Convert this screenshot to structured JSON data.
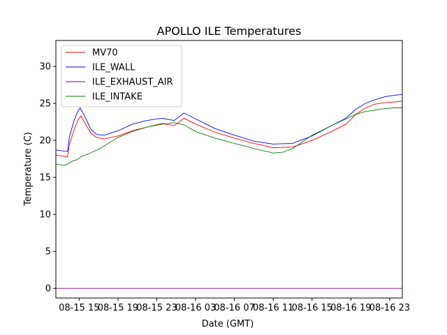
{
  "chart_data": {
    "type": "line",
    "title": "APOLLO ILE Temperatures",
    "xlabel": "Date (GMT)",
    "ylabel": "Temperature (C)",
    "x_unit": "hours since 08-15 11:00 GMT",
    "xlim": [
      1.6,
      37.3
    ],
    "ylim": [
      -1.3,
      33.5
    ],
    "yticks": [
      0,
      5,
      10,
      15,
      20,
      25,
      30
    ],
    "xticks": [
      {
        "value": 4,
        "label": "08-15 15"
      },
      {
        "value": 8,
        "label": "08-15 19"
      },
      {
        "value": 12,
        "label": "08-15 23"
      },
      {
        "value": 16,
        "label": "08-16 03"
      },
      {
        "value": 20,
        "label": "08-16 07"
      },
      {
        "value": 24,
        "label": "08-16 11"
      },
      {
        "value": 28,
        "label": "08-16 15"
      },
      {
        "value": 32,
        "label": "08-16 19"
      },
      {
        "value": 36,
        "label": "08-16 23"
      }
    ],
    "legend_position": "top-left",
    "series": [
      {
        "name": "MV70",
        "color": "#ff0000",
        "points": [
          [
            1.6,
            18.0
          ],
          [
            2.8,
            17.8
          ],
          [
            3.0,
            19.5
          ],
          [
            3.5,
            21.5
          ],
          [
            3.9,
            22.8
          ],
          [
            4.2,
            23.3
          ],
          [
            4.6,
            22.3
          ],
          [
            5.2,
            21.0
          ],
          [
            5.8,
            20.4
          ],
          [
            6.6,
            20.2
          ],
          [
            8.0,
            20.6
          ],
          [
            9.5,
            21.3
          ],
          [
            11.0,
            21.8
          ],
          [
            12.6,
            22.3
          ],
          [
            12.8,
            22.2
          ],
          [
            13.8,
            22.0
          ],
          [
            14.8,
            23.0
          ],
          [
            16.0,
            22.2
          ],
          [
            18.0,
            21.1
          ],
          [
            20.0,
            20.3
          ],
          [
            22.0,
            19.6
          ],
          [
            24.0,
            19.0
          ],
          [
            26.0,
            19.1
          ],
          [
            28.0,
            20.0
          ],
          [
            30.0,
            21.2
          ],
          [
            31.5,
            22.2
          ],
          [
            32.5,
            23.5
          ],
          [
            33.5,
            24.4
          ],
          [
            34.5,
            24.9
          ],
          [
            35.5,
            25.1
          ],
          [
            36.5,
            25.2
          ],
          [
            37.3,
            25.3
          ]
        ]
      },
      {
        "name": "ILE_WALL",
        "color": "#0000ff",
        "points": [
          [
            1.6,
            18.7
          ],
          [
            2.8,
            18.5
          ],
          [
            3.0,
            20.5
          ],
          [
            3.5,
            22.8
          ],
          [
            3.9,
            24.0
          ],
          [
            4.1,
            24.4
          ],
          [
            4.6,
            23.2
          ],
          [
            5.2,
            21.5
          ],
          [
            5.8,
            20.8
          ],
          [
            6.6,
            20.7
          ],
          [
            8.0,
            21.3
          ],
          [
            9.5,
            22.2
          ],
          [
            11.0,
            22.7
          ],
          [
            12.6,
            23.0
          ],
          [
            12.8,
            22.9
          ],
          [
            13.8,
            22.7
          ],
          [
            14.8,
            23.7
          ],
          [
            16.0,
            22.9
          ],
          [
            18.0,
            21.6
          ],
          [
            20.0,
            20.7
          ],
          [
            22.0,
            19.9
          ],
          [
            24.0,
            19.5
          ],
          [
            26.0,
            19.6
          ],
          [
            28.0,
            20.6
          ],
          [
            30.0,
            22.0
          ],
          [
            31.5,
            23.0
          ],
          [
            32.5,
            24.2
          ],
          [
            33.5,
            25.0
          ],
          [
            34.5,
            25.5
          ],
          [
            35.5,
            25.9
          ],
          [
            36.5,
            26.1
          ],
          [
            37.3,
            26.2
          ]
        ]
      },
      {
        "name": "ILE_EXHAUST_AIR",
        "color": "#800080",
        "points": [
          [
            1.6,
            0.0
          ],
          [
            37.3,
            0.0
          ]
        ]
      },
      {
        "name": "ILE_INTAKE",
        "color": "#008000",
        "points": [
          [
            1.6,
            16.8
          ],
          [
            2.5,
            16.6
          ],
          [
            2.8,
            16.8
          ],
          [
            3.3,
            17.2
          ],
          [
            3.8,
            17.4
          ],
          [
            4.2,
            17.8
          ],
          [
            5.0,
            18.2
          ],
          [
            6.0,
            18.8
          ],
          [
            7.0,
            19.6
          ],
          [
            8.0,
            20.4
          ],
          [
            9.5,
            21.2
          ],
          [
            11.0,
            21.8
          ],
          [
            12.6,
            22.2
          ],
          [
            13.8,
            22.4
          ],
          [
            14.8,
            22.1
          ],
          [
            16.0,
            21.2
          ],
          [
            18.0,
            20.3
          ],
          [
            20.0,
            19.6
          ],
          [
            22.0,
            18.9
          ],
          [
            24.0,
            18.3
          ],
          [
            25.0,
            18.4
          ],
          [
            26.0,
            18.9
          ],
          [
            27.0,
            19.8
          ],
          [
            28.0,
            20.7
          ],
          [
            30.0,
            22.0
          ],
          [
            31.5,
            22.9
          ],
          [
            32.5,
            23.5
          ],
          [
            33.5,
            23.9
          ],
          [
            34.5,
            24.1
          ],
          [
            35.5,
            24.3
          ],
          [
            36.5,
            24.4
          ],
          [
            37.3,
            24.4
          ]
        ]
      }
    ]
  }
}
